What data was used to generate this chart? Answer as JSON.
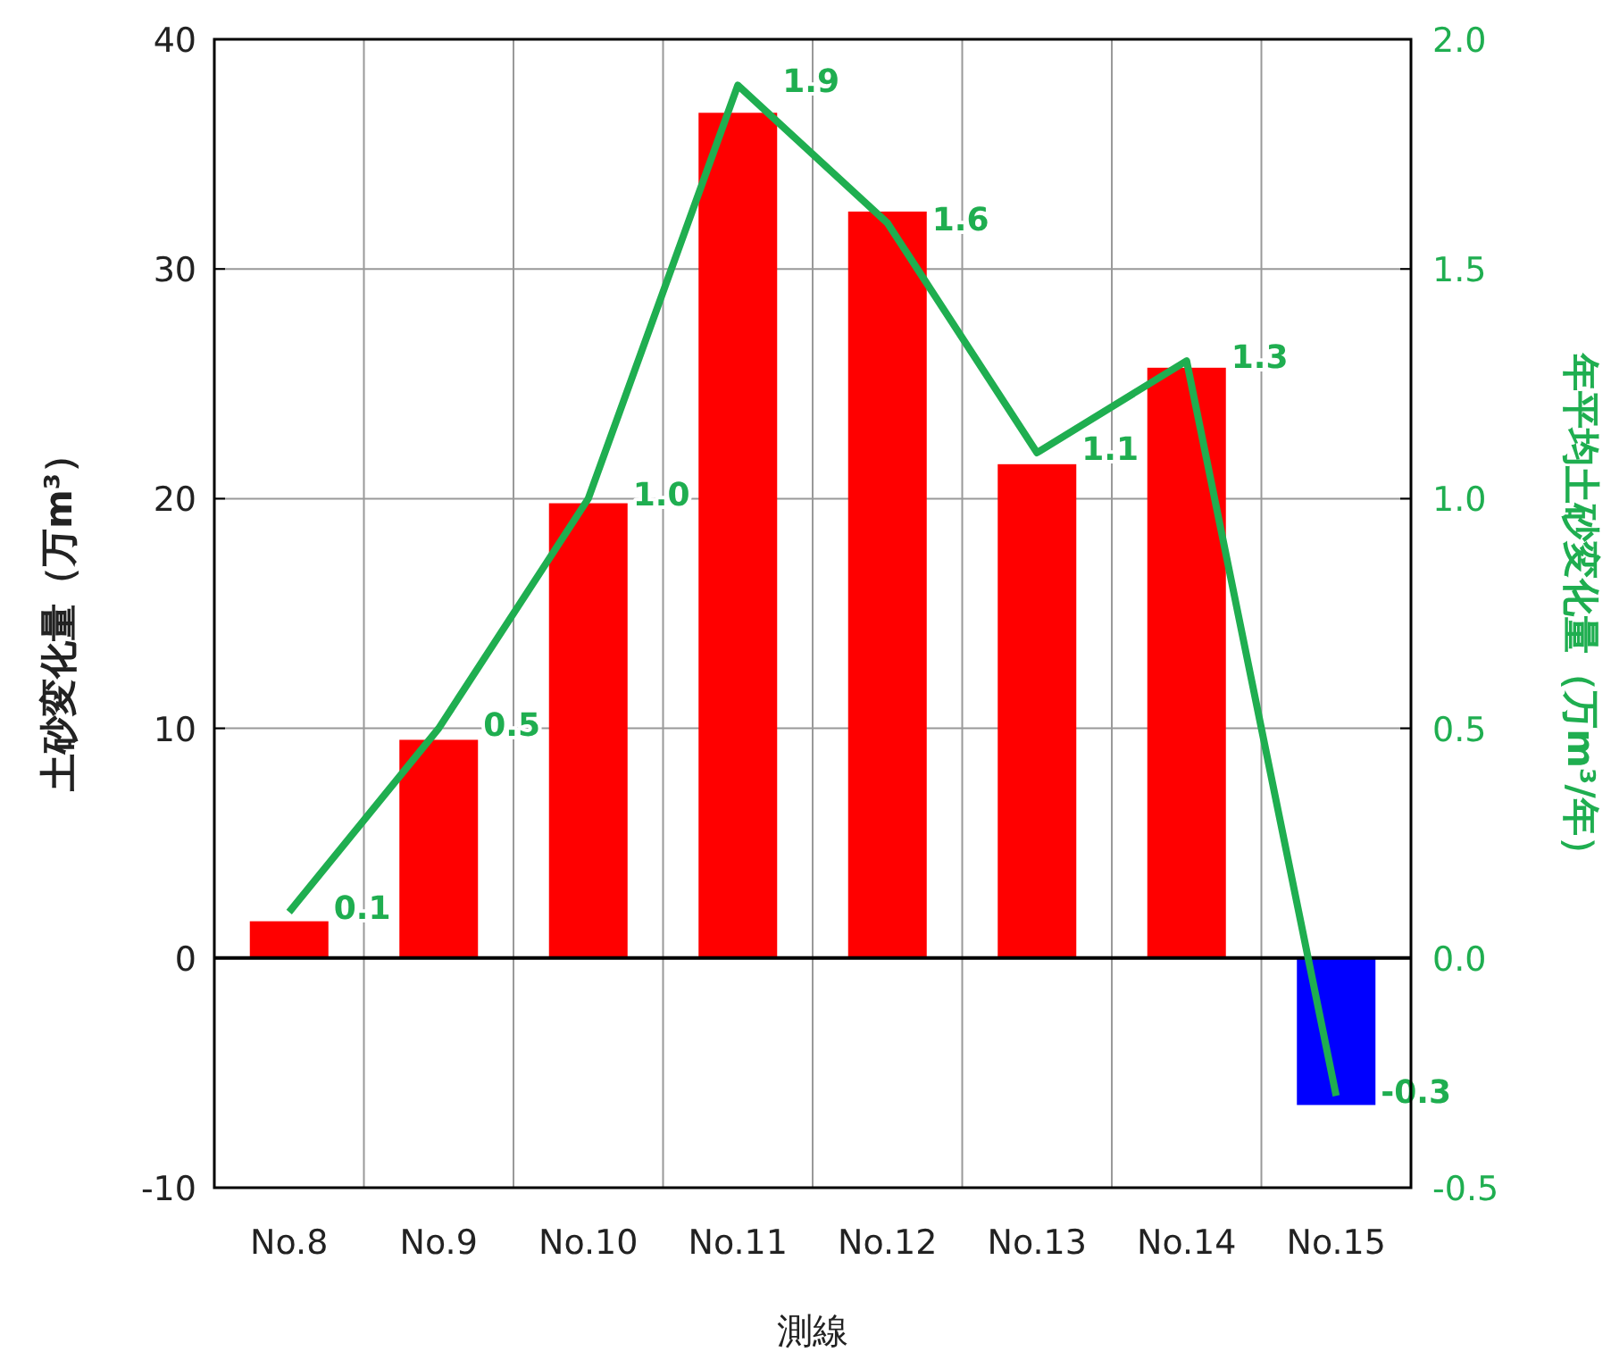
{
  "chart_data": {
    "type": "bar",
    "categories": [
      "No.8",
      "No.9",
      "No.10",
      "No.11",
      "No.12",
      "No.13",
      "No.14",
      "No.15"
    ],
    "xlabel": "測線",
    "ylabel": "土砂変化量（万m³）",
    "y2label": "年平均土砂変化量（万m³/年）",
    "ylim": [
      -10,
      40
    ],
    "yticks": [
      -10,
      0,
      10,
      20,
      30,
      40
    ],
    "y2lim": [
      -0.5,
      2.0
    ],
    "y2ticks": [
      {
        "value": -0.5,
        "label": "-0.5"
      },
      {
        "value": 0,
        "label": "0.0"
      },
      {
        "value": 0.5,
        "label": "0.5"
      },
      {
        "value": 1,
        "label": "1.0"
      },
      {
        "value": 1.5,
        "label": "1.5"
      },
      {
        "value": 2,
        "label": "2.0"
      }
    ],
    "grid": true,
    "series": [
      {
        "colors": [
          "#ff0000",
          "#ff0000",
          "#ff0000",
          "#ff0000",
          "#ff0000",
          "#ff0000",
          "#ff0000",
          "#0000ff"
        ],
        "values": [
          1.6,
          9.5,
          19.8,
          36.8,
          32.5,
          21.5,
          25.7,
          -6.4
        ]
      },
      {
        "type": "line",
        "axis": "y2",
        "color": "#1fae50",
        "values": [
          0.1,
          0.5,
          1.0,
          1.9,
          1.6,
          1.1,
          1.3,
          -0.3
        ],
        "value_labels": [
          "0.1",
          "0.5",
          "1.0",
          "1.9",
          "1.6",
          "1.1",
          "1.3",
          "-0.3"
        ]
      }
    ]
  }
}
